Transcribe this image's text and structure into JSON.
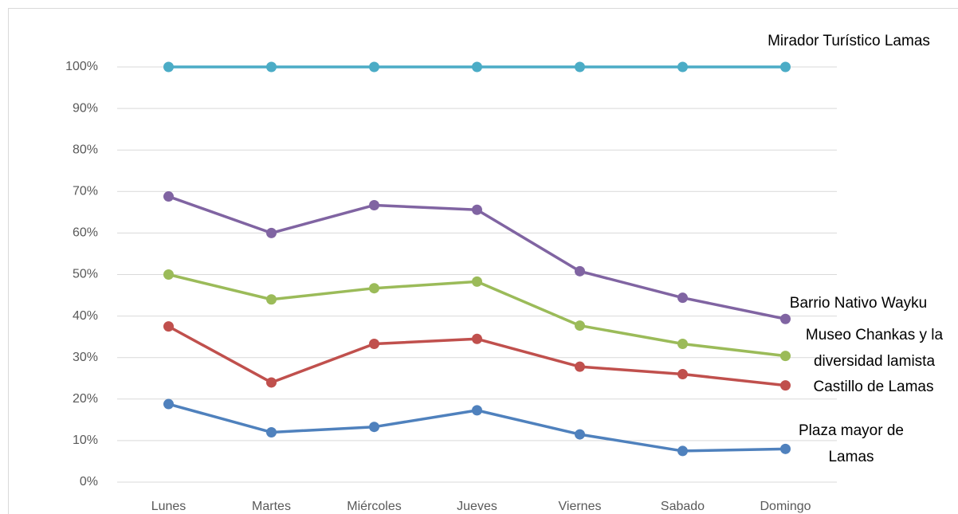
{
  "chart_data": {
    "type": "line",
    "categories": [
      "Lunes",
      "Martes",
      "Miércoles",
      "Jueves",
      "Viernes",
      "Sabado",
      "Domingo"
    ],
    "series": [
      {
        "name": "Plaza mayor de Lamas",
        "color": "#4f81bd",
        "values": [
          18.8,
          12,
          13.3,
          17.3,
          11.5,
          7.5,
          8
        ]
      },
      {
        "name": "Castillo de Lamas",
        "color": "#c0504d",
        "values": [
          37.5,
          24,
          33.3,
          34.5,
          27.8,
          26,
          23.3
        ]
      },
      {
        "name": "Museo Chankas y la diversidad lamista",
        "color": "#9bbb59",
        "values": [
          50,
          44,
          46.7,
          48.3,
          37.7,
          33.3,
          30.4
        ]
      },
      {
        "name": "Barrio Nativo Wayku",
        "color": "#8064a2",
        "values": [
          68.8,
          60,
          66.7,
          65.6,
          50.8,
          44.4,
          39.3
        ]
      },
      {
        "name": "Mirador Turístico Lamas",
        "color": "#4bacc6",
        "values": [
          100,
          100,
          100,
          100,
          100,
          100,
          100
        ]
      }
    ],
    "ylim": [
      0,
      100
    ],
    "yticks": [
      {
        "value": 0,
        "label": "0%"
      },
      {
        "value": 10,
        "label": "10%"
      },
      {
        "value": 20,
        "label": "20%"
      },
      {
        "value": 30,
        "label": "30%"
      },
      {
        "value": 40,
        "label": "40%"
      },
      {
        "value": 50,
        "label": "50%"
      },
      {
        "value": 60,
        "label": "60%"
      },
      {
        "value": 70,
        "label": "70%"
      },
      {
        "value": 80,
        "label": "80%"
      },
      {
        "value": 90,
        "label": "90%"
      },
      {
        "value": 100,
        "label": "100%"
      }
    ],
    "grid": true
  }
}
